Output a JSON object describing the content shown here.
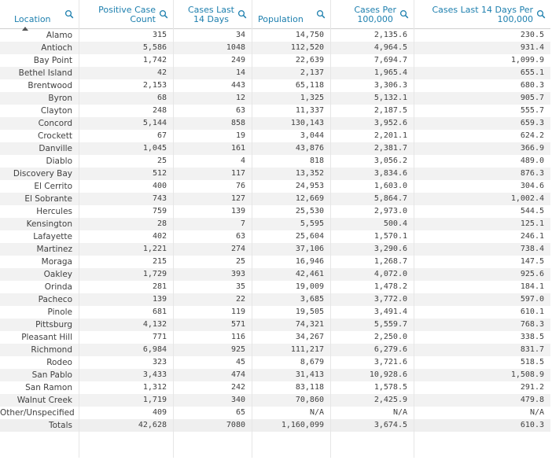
{
  "headers": [
    {
      "label": "Location"
    },
    {
      "label": "Positive Case\nCount"
    },
    {
      "label": "Cases Last\n14 Days"
    },
    {
      "label": "Population"
    },
    {
      "label": "Cases Per\n100,000"
    },
    {
      "label": "Cases Last 14 Days Per\n100,000"
    }
  ],
  "rows": [
    [
      "Alamo",
      "315",
      "34",
      "14,750",
      "2,135.6",
      "230.5"
    ],
    [
      "Antioch",
      "5,586",
      "1048",
      "112,520",
      "4,964.5",
      "931.4"
    ],
    [
      "Bay Point",
      "1,742",
      "249",
      "22,639",
      "7,694.7",
      "1,099.9"
    ],
    [
      "Bethel Island",
      "42",
      "14",
      "2,137",
      "1,965.4",
      "655.1"
    ],
    [
      "Brentwood",
      "2,153",
      "443",
      "65,118",
      "3,306.3",
      "680.3"
    ],
    [
      "Byron",
      "68",
      "12",
      "1,325",
      "5,132.1",
      "905.7"
    ],
    [
      "Clayton",
      "248",
      "63",
      "11,337",
      "2,187.5",
      "555.7"
    ],
    [
      "Concord",
      "5,144",
      "858",
      "130,143",
      "3,952.6",
      "659.3"
    ],
    [
      "Crockett",
      "67",
      "19",
      "3,044",
      "2,201.1",
      "624.2"
    ],
    [
      "Danville",
      "1,045",
      "161",
      "43,876",
      "2,381.7",
      "366.9"
    ],
    [
      "Diablo",
      "25",
      "4",
      "818",
      "3,056.2",
      "489.0"
    ],
    [
      "Discovery Bay",
      "512",
      "117",
      "13,352",
      "3,834.6",
      "876.3"
    ],
    [
      "El Cerrito",
      "400",
      "76",
      "24,953",
      "1,603.0",
      "304.6"
    ],
    [
      "El Sobrante",
      "743",
      "127",
      "12,669",
      "5,864.7",
      "1,002.4"
    ],
    [
      "Hercules",
      "759",
      "139",
      "25,530",
      "2,973.0",
      "544.5"
    ],
    [
      "Kensington",
      "28",
      "7",
      "5,595",
      "500.4",
      "125.1"
    ],
    [
      "Lafayette",
      "402",
      "63",
      "25,604",
      "1,570.1",
      "246.1"
    ],
    [
      "Martinez",
      "1,221",
      "274",
      "37,106",
      "3,290.6",
      "738.4"
    ],
    [
      "Moraga",
      "215",
      "25",
      "16,946",
      "1,268.7",
      "147.5"
    ],
    [
      "Oakley",
      "1,729",
      "393",
      "42,461",
      "4,072.0",
      "925.6"
    ],
    [
      "Orinda",
      "281",
      "35",
      "19,009",
      "1,478.2",
      "184.1"
    ],
    [
      "Pacheco",
      "139",
      "22",
      "3,685",
      "3,772.0",
      "597.0"
    ],
    [
      "Pinole",
      "681",
      "119",
      "19,505",
      "3,491.4",
      "610.1"
    ],
    [
      "Pittsburg",
      "4,132",
      "571",
      "74,321",
      "5,559.7",
      "768.3"
    ],
    [
      "Pleasant Hill",
      "771",
      "116",
      "34,267",
      "2,250.0",
      "338.5"
    ],
    [
      "Richmond",
      "6,984",
      "925",
      "111,217",
      "6,279.6",
      "831.7"
    ],
    [
      "Rodeo",
      "323",
      "45",
      "8,679",
      "3,721.6",
      "518.5"
    ],
    [
      "San Pablo",
      "3,433",
      "474",
      "31,413",
      "10,928.6",
      "1,508.9"
    ],
    [
      "San Ramon",
      "1,312",
      "242",
      "83,118",
      "1,578.5",
      "291.2"
    ],
    [
      "Walnut Creek",
      "1,719",
      "340",
      "70,860",
      "2,425.9",
      "479.8"
    ],
    [
      "Other/Unspecified",
      "409",
      "65",
      "N/A",
      "N/A",
      "N/A"
    ]
  ],
  "totals": [
    "Totals",
    "42,628",
    "7080",
    "1,160,099",
    "3,674.5",
    "610.3"
  ],
  "icons": {
    "search": "search-icon",
    "sort": "sort-ascending-icon"
  },
  "colors": {
    "header_text": "#1d7fae",
    "row_alt": "#f2f2f2",
    "text": "#404040"
  }
}
